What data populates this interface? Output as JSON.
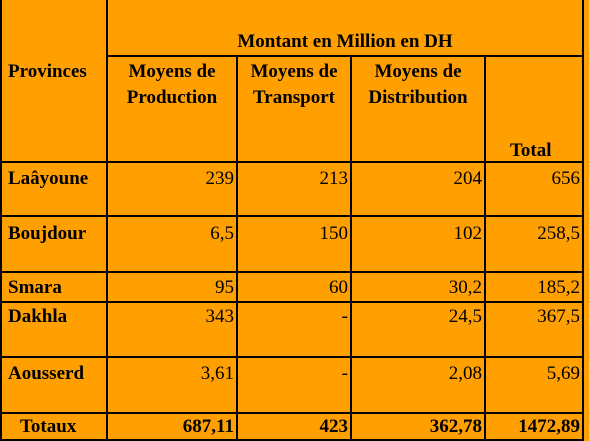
{
  "header": {
    "provinces_label": "Provinces",
    "group_label": "Montant en Million en DH",
    "columns": [
      {
        "line1": "Moyens de",
        "line2": "Production"
      },
      {
        "line1": "Moyens de",
        "line2": "Transport"
      },
      {
        "line1": "Moyens de",
        "line2": "Distribution"
      },
      {
        "line1": "",
        "line2": "Total"
      }
    ]
  },
  "rows": [
    {
      "province": "Laâyoune",
      "values": [
        "239",
        "213",
        "204",
        "656"
      ]
    },
    {
      "province": "Boujdour",
      "values": [
        "6,5",
        "150",
        "102",
        "258,5"
      ]
    },
    {
      "province": "Smara",
      "values": [
        "95",
        "60",
        "30,2",
        "185,2"
      ]
    },
    {
      "province": "Dakhla",
      "values": [
        "343",
        "-",
        "24,5",
        "367,5"
      ]
    },
    {
      "province": "Aousserd",
      "values": [
        "3,61",
        "-",
        "2,08",
        "5,69"
      ]
    }
  ],
  "totals": {
    "label": "Totaux",
    "values": [
      "687,11",
      "423",
      "362,78",
      "1472,89"
    ]
  },
  "colors": {
    "background": "#ffa000",
    "grid": "#000000"
  }
}
